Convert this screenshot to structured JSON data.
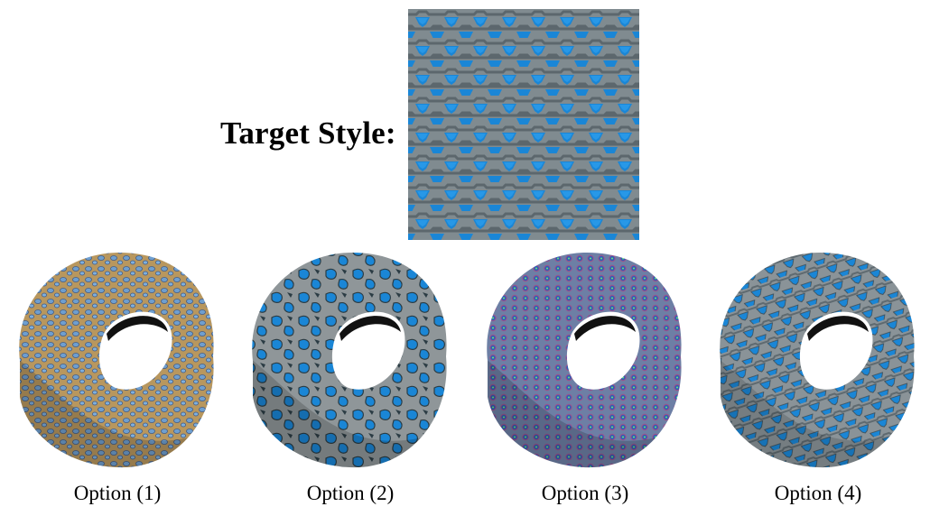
{
  "header": {
    "title": "Target Style:"
  },
  "target": {
    "icon": "blue-triangle-tile-texture",
    "colors": {
      "base": "#7e8a8f",
      "blob": "#1a86d6",
      "dark": "#3c4a52"
    }
  },
  "options": [
    {
      "label": "Option (1)",
      "icon": "torus-texture-tan-blue",
      "colors": {
        "base": "#b8975e",
        "blob": "#6f9fcf",
        "edge": "#3d5a8a"
      }
    },
    {
      "label": "Option (2)",
      "icon": "torus-texture-gray-blue-blobs",
      "colors": {
        "base": "#8f9699",
        "blob": "#1a86d6",
        "edge": "#2b3c44"
      }
    },
    {
      "label": "Option (3)",
      "icon": "torus-texture-cells",
      "colors": {
        "base": "#6d7fa5",
        "blob": "#2f5fb5",
        "edge": "#a0508a"
      }
    },
    {
      "label": "Option (4)",
      "icon": "torus-texture-blue-triangles",
      "colors": {
        "base": "#8a9398",
        "blob": "#1a86d6",
        "edge": "#3c4a52"
      }
    }
  ]
}
